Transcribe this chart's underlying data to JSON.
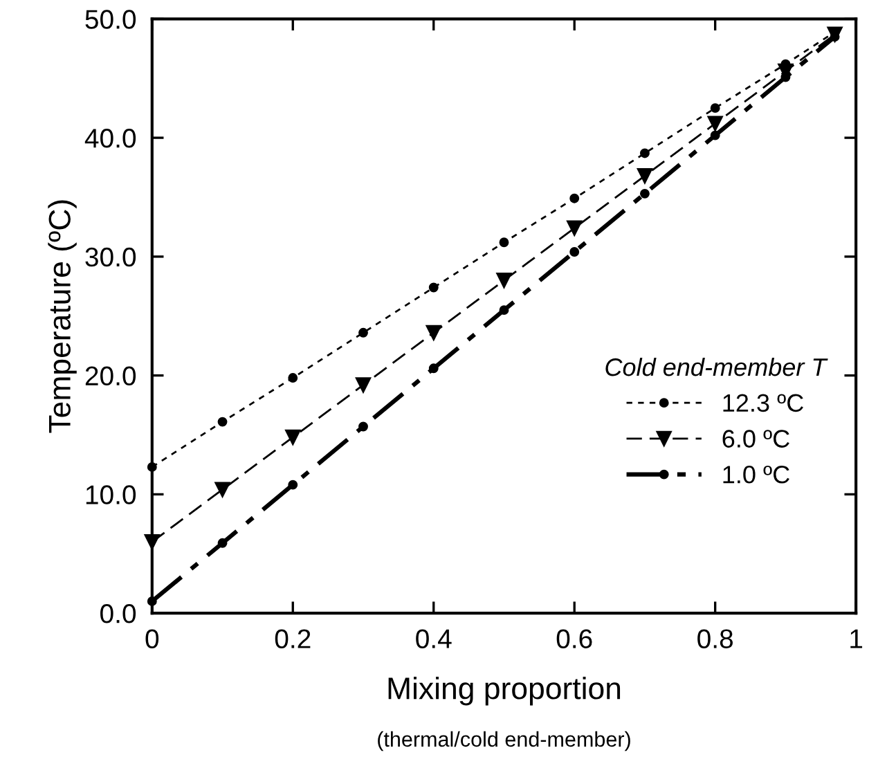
{
  "chart_data": {
    "type": "line",
    "xlabel": "Mixing proportion",
    "ylabel": "Temperature (ºC)",
    "annotations": [
      "(thermal/cold end-member)"
    ],
    "legend_title": "Cold end-member T",
    "legend": "right",
    "x": [
      0,
      0.1,
      0.2,
      0.3,
      0.4,
      0.5,
      0.6,
      0.7,
      0.8,
      0.9,
      0.97
    ],
    "series": [
      {
        "name": "12.3 ºC",
        "color": "#000000",
        "marker": "circle",
        "line_style": "dotted",
        "values": [
          12.3,
          16.1,
          19.8,
          23.6,
          27.4,
          31.2,
          34.9,
          38.7,
          42.5,
          46.2,
          48.9
        ]
      },
      {
        "name": "6.0 ºC",
        "color": "#000000",
        "marker": "triangle",
        "line_style": "dashed",
        "values": [
          6.0,
          10.4,
          14.8,
          19.2,
          23.6,
          28.0,
          32.4,
          36.8,
          41.2,
          45.6,
          48.7
        ]
      },
      {
        "name": "1.0 ºC",
        "color": "#000000",
        "marker": "circle",
        "line_style": "dashdot",
        "values": [
          1.0,
          5.9,
          10.8,
          15.7,
          20.6,
          25.5,
          30.4,
          35.3,
          40.2,
          45.1,
          48.5
        ]
      }
    ],
    "xlim": [
      0,
      1
    ],
    "ylim": [
      0,
      50
    ],
    "xticks": [
      0,
      0.2,
      0.4,
      0.6,
      0.8,
      1
    ],
    "yticks": [
      {
        "value": 0,
        "label": "0.0"
      },
      {
        "value": 10,
        "label": "10.0"
      },
      {
        "value": 20,
        "label": "20.0"
      },
      {
        "value": 30,
        "label": "30.0"
      },
      {
        "value": 40,
        "label": "40.0"
      },
      {
        "value": 50,
        "label": "50.0"
      }
    ],
    "grid": false
  }
}
